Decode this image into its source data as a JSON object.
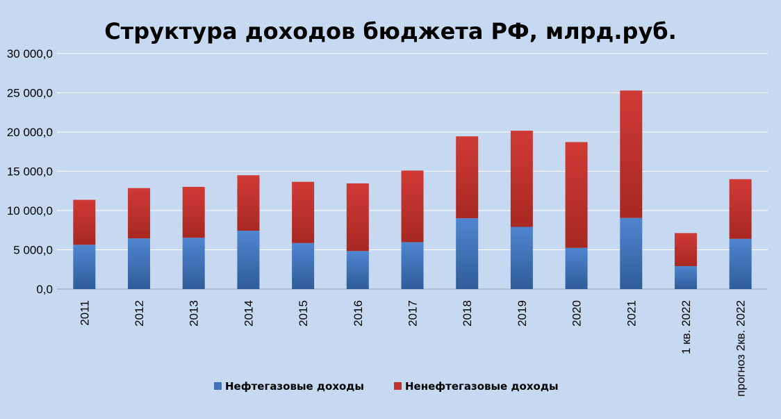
{
  "chart_data": {
    "type": "bar",
    "stacked": true,
    "title": "Структура доходов бюджета РФ, млрд.руб.",
    "xlabel": "",
    "ylabel": "",
    "ylim": [
      0,
      30000
    ],
    "yticks": [
      0,
      5000,
      10000,
      15000,
      20000,
      25000,
      30000
    ],
    "ytick_labels": [
      "0,0",
      "5 000,0",
      "10 000,0",
      "15 000,0",
      "20 000,0",
      "25 000,0",
      "30 000,0"
    ],
    "categories": [
      "2011",
      "2012",
      "2013",
      "2014",
      "2015",
      "2016",
      "2017",
      "2018",
      "2019",
      "2020",
      "2021",
      "1 кв. 2022",
      "прогноз 2кв. 2022"
    ],
    "series": [
      {
        "name": "Нефтегазовые доходы",
        "color": "#4a7ebb",
        "values": [
          5640,
          6450,
          6530,
          7430,
          5860,
          4840,
          5970,
          9020,
          7920,
          5240,
          9060,
          2920,
          6400
        ]
      },
      {
        "name": "Ненефтегазовые доходы",
        "color": "#c0392b",
        "values": [
          5730,
          6410,
          6490,
          7060,
          7800,
          8620,
          9120,
          10430,
          12250,
          13480,
          16230,
          4210,
          7600
        ]
      }
    ],
    "grid": true,
    "legend_position": "bottom"
  }
}
